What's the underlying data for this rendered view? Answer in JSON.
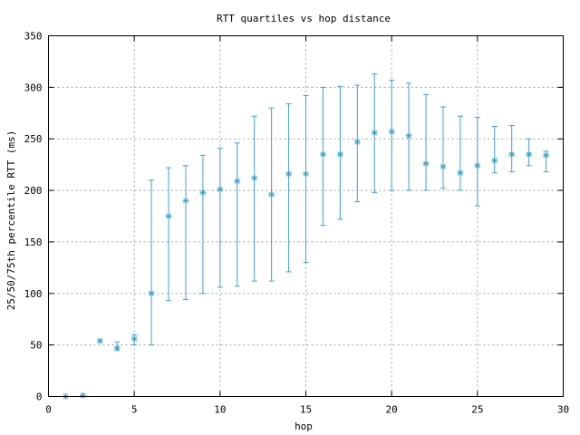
{
  "chart_data": {
    "type": "scatter",
    "title": "RTT quartiles vs hop distance",
    "xlabel": "hop",
    "ylabel": "25/50/75th percentile RTT (ms)",
    "xlim": [
      0,
      30
    ],
    "ylim": [
      0,
      350
    ],
    "xticks": [
      0,
      5,
      10,
      15,
      20,
      25,
      30
    ],
    "yticks": [
      0,
      50,
      100,
      150,
      200,
      250,
      300,
      350
    ],
    "grid": true,
    "marker": "asterisk",
    "color": "#3fa2c8",
    "points": [
      {
        "hop": 1,
        "p25": 0,
        "p50": 0,
        "p75": 0
      },
      {
        "hop": 2,
        "p25": 1,
        "p50": 1,
        "p75": 1
      },
      {
        "hop": 3,
        "p25": 54,
        "p50": 54,
        "p75": 54
      },
      {
        "hop": 4,
        "p25": 45,
        "p50": 47,
        "p75": 53
      },
      {
        "hop": 5,
        "p25": 50,
        "p50": 56,
        "p75": 60
      },
      {
        "hop": 6,
        "p25": 50,
        "p50": 100,
        "p75": 210
      },
      {
        "hop": 7,
        "p25": 93,
        "p50": 175,
        "p75": 222
      },
      {
        "hop": 8,
        "p25": 94,
        "p50": 190,
        "p75": 224
      },
      {
        "hop": 9,
        "p25": 100,
        "p50": 198,
        "p75": 234
      },
      {
        "hop": 10,
        "p25": 106,
        "p50": 201,
        "p75": 241
      },
      {
        "hop": 11,
        "p25": 107,
        "p50": 209,
        "p75": 246
      },
      {
        "hop": 12,
        "p25": 112,
        "p50": 212,
        "p75": 272
      },
      {
        "hop": 13,
        "p25": 112,
        "p50": 196,
        "p75": 280
      },
      {
        "hop": 14,
        "p25": 121,
        "p50": 216,
        "p75": 284
      },
      {
        "hop": 15,
        "p25": 130,
        "p50": 216,
        "p75": 292
      },
      {
        "hop": 16,
        "p25": 166,
        "p50": 235,
        "p75": 300
      },
      {
        "hop": 17,
        "p25": 172,
        "p50": 235,
        "p75": 301
      },
      {
        "hop": 18,
        "p25": 189,
        "p50": 247,
        "p75": 302
      },
      {
        "hop": 19,
        "p25": 198,
        "p50": 256,
        "p75": 313
      },
      {
        "hop": 20,
        "p25": 200,
        "p50": 257,
        "p75": 307
      },
      {
        "hop": 21,
        "p25": 200,
        "p50": 253,
        "p75": 304
      },
      {
        "hop": 22,
        "p25": 200,
        "p50": 226,
        "p75": 293
      },
      {
        "hop": 23,
        "p25": 202,
        "p50": 223,
        "p75": 281
      },
      {
        "hop": 24,
        "p25": 200,
        "p50": 217,
        "p75": 272
      },
      {
        "hop": 25,
        "p25": 185,
        "p50": 224,
        "p75": 271
      },
      {
        "hop": 26,
        "p25": 217,
        "p50": 229,
        "p75": 262
      },
      {
        "hop": 27,
        "p25": 218,
        "p50": 235,
        "p75": 263
      },
      {
        "hop": 28,
        "p25": 224,
        "p50": 235,
        "p75": 250
      },
      {
        "hop": 29,
        "p25": 218,
        "p50": 234,
        "p75": 238
      }
    ]
  }
}
